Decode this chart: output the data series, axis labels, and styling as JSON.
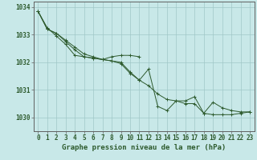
{
  "title": "Graphe pression niveau de la mer (hPa)",
  "background_color": "#c8e8e8",
  "grid_color": "#a0c8c8",
  "line_color": "#2d5a2d",
  "ylim": [
    1029.5,
    1034.2
  ],
  "xlim": [
    -0.5,
    23.5
  ],
  "yticks": [
    1030,
    1031,
    1032,
    1033,
    1034
  ],
  "xticks": [
    0,
    1,
    2,
    3,
    4,
    5,
    6,
    7,
    8,
    9,
    10,
    11,
    12,
    13,
    14,
    15,
    16,
    17,
    18,
    19,
    20,
    21,
    22,
    23
  ],
  "series1_x": [
    0,
    1,
    2,
    3,
    4,
    5,
    6,
    7,
    8,
    9,
    10,
    11
  ],
  "series1_y": [
    1033.85,
    1033.2,
    1033.05,
    1032.75,
    1032.45,
    1032.2,
    1032.15,
    1032.1,
    1032.2,
    1032.25,
    1032.25,
    1032.2
  ],
  "series2_x": [
    0,
    1,
    2,
    3,
    4,
    5,
    6,
    7,
    8,
    9,
    10,
    11,
    12,
    13,
    14,
    15,
    16,
    17,
    18,
    19,
    20,
    21,
    22,
    23
  ],
  "series2_y": [
    1033.85,
    1033.25,
    1032.95,
    1032.65,
    1032.25,
    1032.2,
    1032.15,
    1032.1,
    1032.05,
    1031.95,
    1031.6,
    1031.35,
    1031.75,
    1030.4,
    1030.25,
    1030.6,
    1030.6,
    1030.75,
    1030.15,
    1030.55,
    1030.35,
    1030.25,
    1030.2,
    1030.2
  ],
  "series3_x": [
    0,
    1,
    2,
    3,
    4,
    5,
    6,
    7,
    8,
    9,
    10,
    11,
    12,
    13,
    14,
    15,
    16,
    17,
    18,
    19,
    20,
    21,
    22,
    23
  ],
  "series3_y": [
    1033.85,
    1033.2,
    1033.05,
    1032.8,
    1032.55,
    1032.3,
    1032.2,
    1032.1,
    1032.05,
    1032.0,
    1031.65,
    1031.35,
    1031.15,
    1030.85,
    1030.65,
    1030.6,
    1030.5,
    1030.5,
    1030.15,
    1030.1,
    1030.1,
    1030.1,
    1030.15,
    1030.2
  ],
  "tick_fontsize": 5.5,
  "title_fontsize": 6.5
}
